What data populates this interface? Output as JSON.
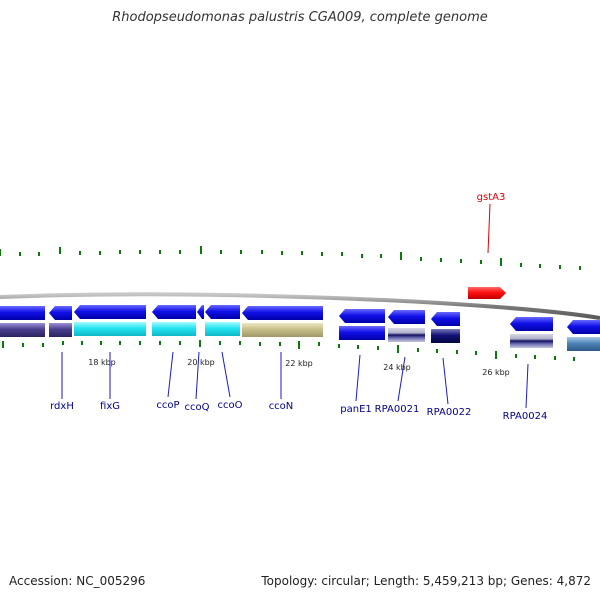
{
  "title": "Rhodopseudomonas palustris CGA009, complete genome",
  "footer": {
    "accession": "Accession: NC_005296",
    "summary": "Topology: circular; Length: 5,459,213 bp; Genes: 4,872"
  },
  "scale_labels": [
    "18 kbp",
    "20 kbp",
    "22 kbp",
    "24 kbp",
    "26 kbp"
  ],
  "gene_labels": [
    "rdxH",
    "fixG",
    "ccoP",
    "ccoQ",
    "ccoO",
    "ccoN",
    "panE1",
    "RPA0021",
    "RPA0022",
    "RPA0024",
    "gstA3"
  ],
  "colors": {
    "forward_gene": "#ff1a1a",
    "reverse_gene": "#0a0ae6",
    "tick": "#0a7a0a",
    "label": "#00008b",
    "highlight_label": "#dd0000",
    "backbone": "#888888",
    "cog_cyan": "#22e0ee",
    "cog_purple": "#4a3f8c",
    "cog_khaki": "#c8c08a",
    "cog_steel": "#4f84b8",
    "cog_navy": "#111177"
  }
}
